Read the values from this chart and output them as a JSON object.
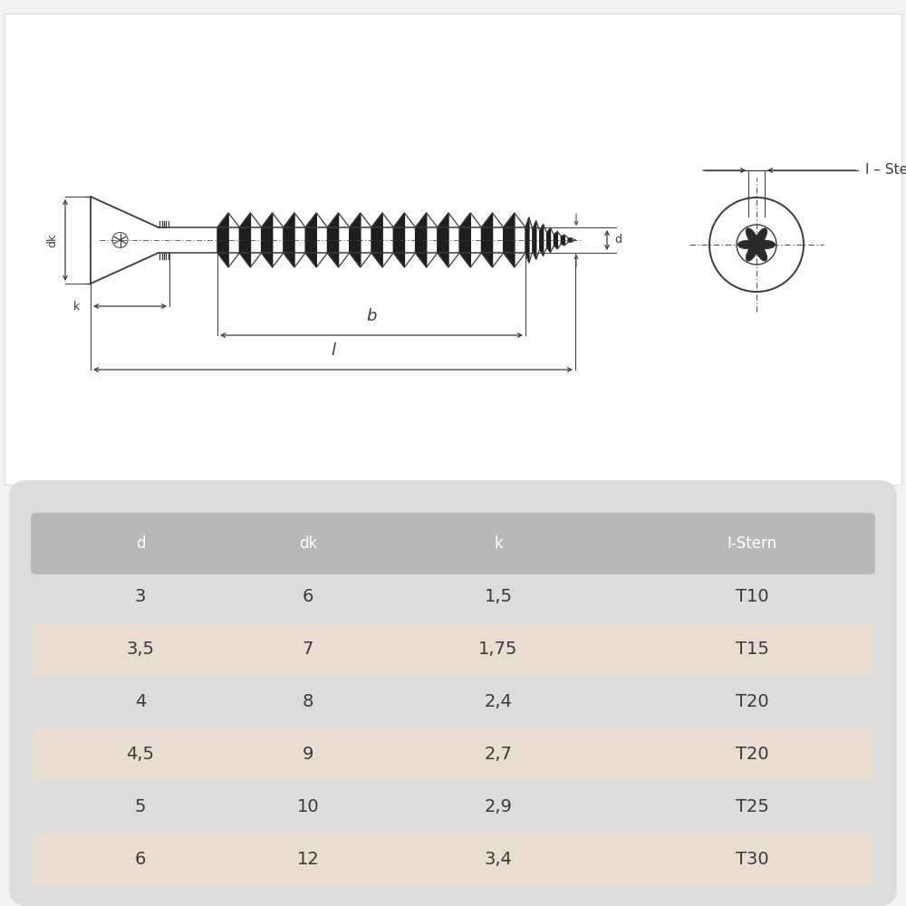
{
  "background_color": "#f2f2f2",
  "table_bg_color": "#dcdcdc",
  "table_header_color": "#b8b8b8",
  "table_row_alt_color": "#e8ddd0",
  "line_color": "#3a3a3a",
  "text_color": "#3a3a3a",
  "headers": [
    "d",
    "dk",
    "k",
    "I-Stern"
  ],
  "rows": [
    [
      "3",
      "6",
      "1,5",
      "T10"
    ],
    [
      "3,5",
      "7",
      "1,75",
      "T15"
    ],
    [
      "4",
      "8",
      "2,4",
      "T20"
    ],
    [
      "4,5",
      "9",
      "2,7",
      "T20"
    ],
    [
      "5",
      "10",
      "2,9",
      "T25"
    ],
    [
      "6",
      "12",
      "3,4",
      "T30"
    ]
  ],
  "dim_label_dk": "dk",
  "dim_label_k": "k",
  "dim_label_b": "b",
  "dim_label_l": "l",
  "dim_label_d": "d",
  "dim_label_istern": "I – Stern"
}
